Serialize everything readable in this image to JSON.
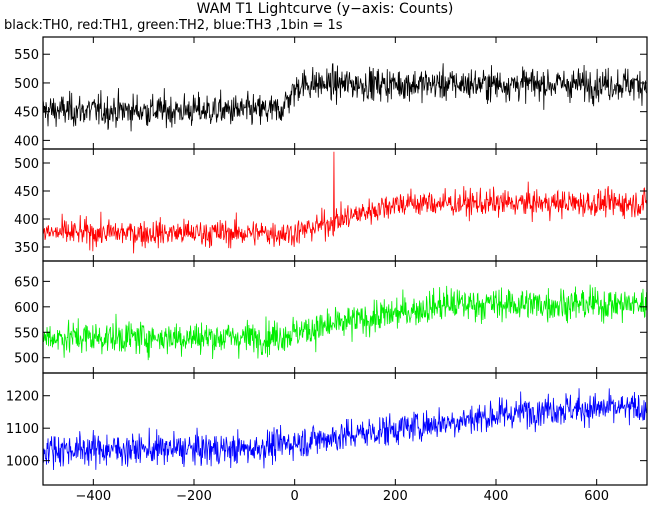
{
  "chart_data": {
    "type": "line",
    "title": "WAM T1 Lightcurve (y−axis: Counts)",
    "subtitle": "black:TH0, red:TH1, green:TH2, blue:TH3 ,1bin = 1s",
    "xlim": [
      -500,
      700
    ],
    "xticks": [
      -400,
      -200,
      0,
      200,
      400,
      600
    ],
    "xtick_labels": [
      "−400",
      "−200",
      "0",
      "200",
      "400",
      "600"
    ],
    "panels": [
      {
        "color": "#000000",
        "ylim": [
          385,
          580
        ],
        "yticks": [
          400,
          450,
          500,
          550
        ],
        "baseline_before": 452,
        "baseline_after": 498,
        "rise_start": -30,
        "rise_end": 10,
        "noise": 20,
        "spikes": []
      },
      {
        "color": "#ff0000",
        "ylim": [
          325,
          525
        ],
        "yticks": [
          350,
          400,
          450,
          500
        ],
        "baseline_before": 375,
        "baseline_after": 428,
        "rise_start": 0,
        "rise_end": 200,
        "noise": 17,
        "spikes": [
          [
            78,
            520
          ]
        ]
      },
      {
        "color": "#00ee00",
        "ylim": [
          470,
          690
        ],
        "yticks": [
          500,
          550,
          600,
          650
        ],
        "baseline_before": 540,
        "baseline_after": 605,
        "rise_start": -50,
        "rise_end": 300,
        "noise": 23,
        "spikes": []
      },
      {
        "color": "#0000ff",
        "ylim": [
          925,
          1270
        ],
        "yticks": [
          1000,
          1100,
          1200
        ],
        "baseline_before": 1035,
        "baseline_after": 1160,
        "rise_start": -100,
        "rise_end": 500,
        "noise": 35,
        "spikes": []
      }
    ]
  }
}
